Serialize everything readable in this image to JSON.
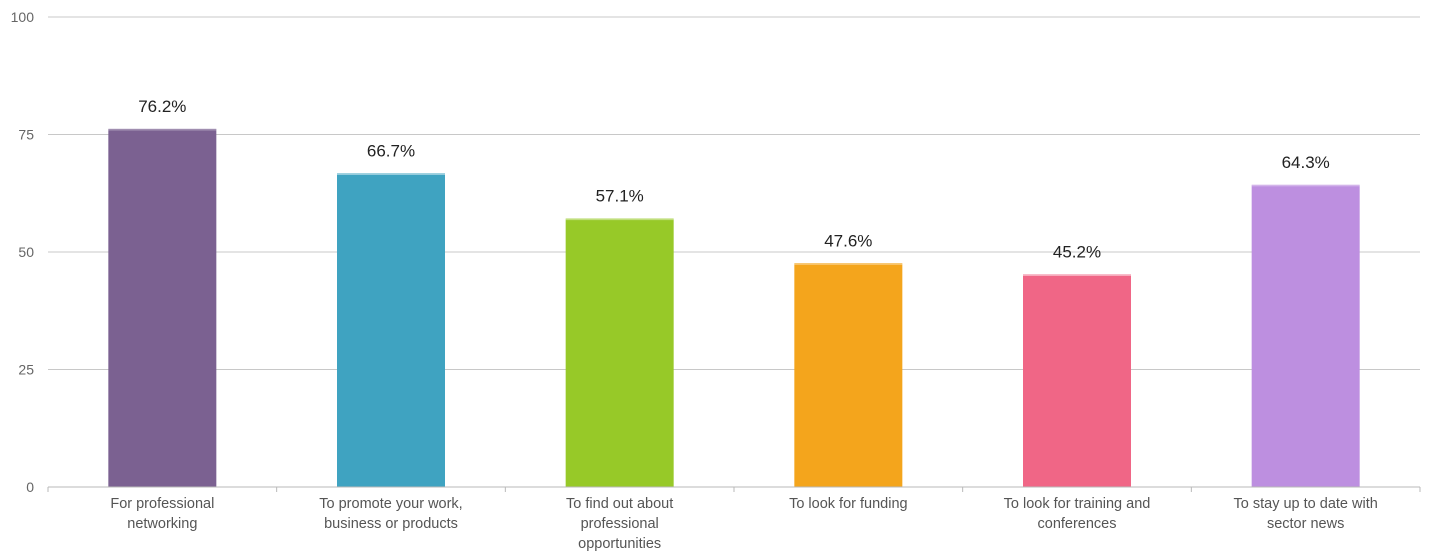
{
  "chart_data": {
    "type": "bar",
    "categories": [
      [
        "For professional",
        "networking"
      ],
      [
        "To promote your work,",
        "business or products"
      ],
      [
        "To find out about",
        "professional",
        "opportunities"
      ],
      [
        "To look for funding"
      ],
      [
        "To look for training and",
        "conferences"
      ],
      [
        "To stay up to date with",
        "sector news"
      ]
    ],
    "values": [
      76.2,
      66.7,
      57.1,
      47.6,
      45.2,
      64.3
    ],
    "data_labels": [
      "76.2%",
      "66.7%",
      "57.1%",
      "47.6%",
      "45.2%",
      "64.3%"
    ],
    "colors": [
      "#7b6191",
      "#3fa3c1",
      "#97c928",
      "#f4a51c",
      "#f06686",
      "#bd8fe0"
    ],
    "ylim": [
      0,
      100
    ],
    "yticks": [
      0,
      25,
      50,
      75,
      100
    ],
    "grid": true,
    "legend": "none"
  }
}
